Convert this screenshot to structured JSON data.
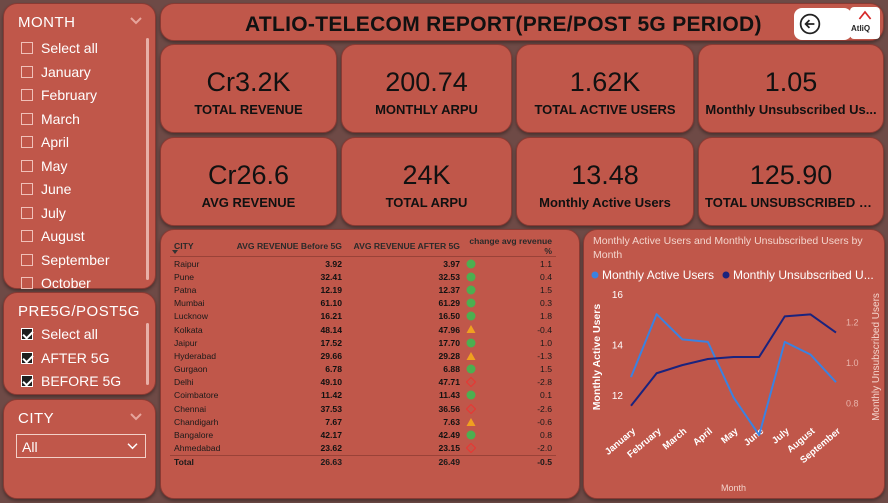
{
  "header": {
    "title": "ATLIO-TELECOM REPORT(PRE/POST 5G PERIOD)",
    "logo_text": "AtliQ"
  },
  "month_slicer": {
    "title": "MONTH",
    "items": [
      "Select all",
      "January",
      "February",
      "March",
      "April",
      "May",
      "June",
      "July",
      "August",
      "September",
      "October"
    ]
  },
  "period_slicer": {
    "title": "PRE5G/POST5G",
    "items": [
      {
        "label": "Select all",
        "checked": true
      },
      {
        "label": "AFTER 5G",
        "checked": true
      },
      {
        "label": "BEFORE 5G",
        "checked": true
      }
    ]
  },
  "city_slicer": {
    "title": "CITY",
    "selected": "All"
  },
  "kpis": [
    {
      "value": "Cr3.2K",
      "label": "TOTAL REVENUE"
    },
    {
      "value": "200.74",
      "label": "MONTHLY ARPU"
    },
    {
      "value": "1.62K",
      "label": "TOTAL ACTIVE USERS"
    },
    {
      "value": "1.05",
      "label": "Monthly Unsubscribed Us..."
    },
    {
      "value": "Cr26.6",
      "label": "AVG REVENUE"
    },
    {
      "value": "24K",
      "label": "TOTAL ARPU"
    },
    {
      "value": "13.48",
      "label": "Monthly Active Users"
    },
    {
      "value": "125.90",
      "label": "TOTAL UNSUBSCRIBED US..."
    }
  ],
  "city_table": {
    "headers": [
      "CITY",
      "AVG REVENUE Before 5G",
      "AVG REVENUE AFTER 5G",
      "change avg revenue %"
    ],
    "rows": [
      {
        "city": "Raipur",
        "before": "3.92",
        "after": "3.97",
        "ind": "up",
        "change": "1.1"
      },
      {
        "city": "Pune",
        "before": "32.41",
        "after": "32.53",
        "ind": "up",
        "change": "0.4"
      },
      {
        "city": "Patna",
        "before": "12.19",
        "after": "12.37",
        "ind": "up",
        "change": "1.5"
      },
      {
        "city": "Mumbai",
        "before": "61.10",
        "after": "61.29",
        "ind": "up",
        "change": "0.3"
      },
      {
        "city": "Lucknow",
        "before": "16.21",
        "after": "16.50",
        "ind": "up",
        "change": "1.8"
      },
      {
        "city": "Kolkata",
        "before": "48.14",
        "after": "47.96",
        "ind": "warn",
        "change": "-0.4"
      },
      {
        "city": "Jaipur",
        "before": "17.52",
        "after": "17.70",
        "ind": "up",
        "change": "1.0"
      },
      {
        "city": "Hyderabad",
        "before": "29.66",
        "after": "29.28",
        "ind": "warn",
        "change": "-1.3"
      },
      {
        "city": "Gurgaon",
        "before": "6.78",
        "after": "6.88",
        "ind": "up",
        "change": "1.5"
      },
      {
        "city": "Delhi",
        "before": "49.10",
        "after": "47.71",
        "ind": "down",
        "change": "-2.8"
      },
      {
        "city": "Coimbatore",
        "before": "11.42",
        "after": "11.43",
        "ind": "up",
        "change": "0.1"
      },
      {
        "city": "Chennai",
        "before": "37.53",
        "after": "36.56",
        "ind": "down",
        "change": "-2.6"
      },
      {
        "city": "Chandigarh",
        "before": "7.67",
        "after": "7.63",
        "ind": "warn",
        "change": "-0.6"
      },
      {
        "city": "Bangalore",
        "before": "42.17",
        "after": "42.49",
        "ind": "up",
        "change": "0.8"
      },
      {
        "city": "Ahmedabad",
        "before": "23.62",
        "after": "23.15",
        "ind": "down",
        "change": "-2.0"
      }
    ],
    "total": {
      "city": "Total",
      "before": "26.63",
      "after": "26.49",
      "change": "-0.5"
    }
  },
  "colors": {
    "panel": "#c0574a",
    "line1": "#3b82e0",
    "line2": "#1a237e",
    "good": "#4caf50",
    "warn": "#f0a020",
    "bad": "#e53935"
  },
  "chart_data": {
    "type": "line",
    "title": "Monthly Active Users and Monthly Unsubscribed Users by Month",
    "categories": [
      "January",
      "February",
      "March",
      "April",
      "May",
      "June",
      "July",
      "August",
      "September"
    ],
    "series": [
      {
        "name": "Monthly Active Users",
        "axis": "left",
        "values": [
          12.7,
          15.2,
          14.2,
          14.1,
          11.9,
          10.4,
          14.1,
          13.6,
          12.5
        ]
      },
      {
        "name": "Monthly Unsubscribed U...",
        "axis": "right",
        "values": [
          0.79,
          0.95,
          0.99,
          1.02,
          1.03,
          1.03,
          1.23,
          1.24,
          1.15
        ]
      }
    ],
    "ylim_left": [
      11,
      16
    ],
    "yticks_left": [
      "16",
      "14",
      "12"
    ],
    "ylim_right": [
      0.72,
      1.34
    ],
    "yticks_right": [
      "1.2",
      "1.0",
      "0.8"
    ],
    "ylabel_left": "Monthly Active Users",
    "ylabel_right": "Monthly Unsubscribed Users",
    "xlabel": "Month",
    "legend_position": "top-left"
  }
}
